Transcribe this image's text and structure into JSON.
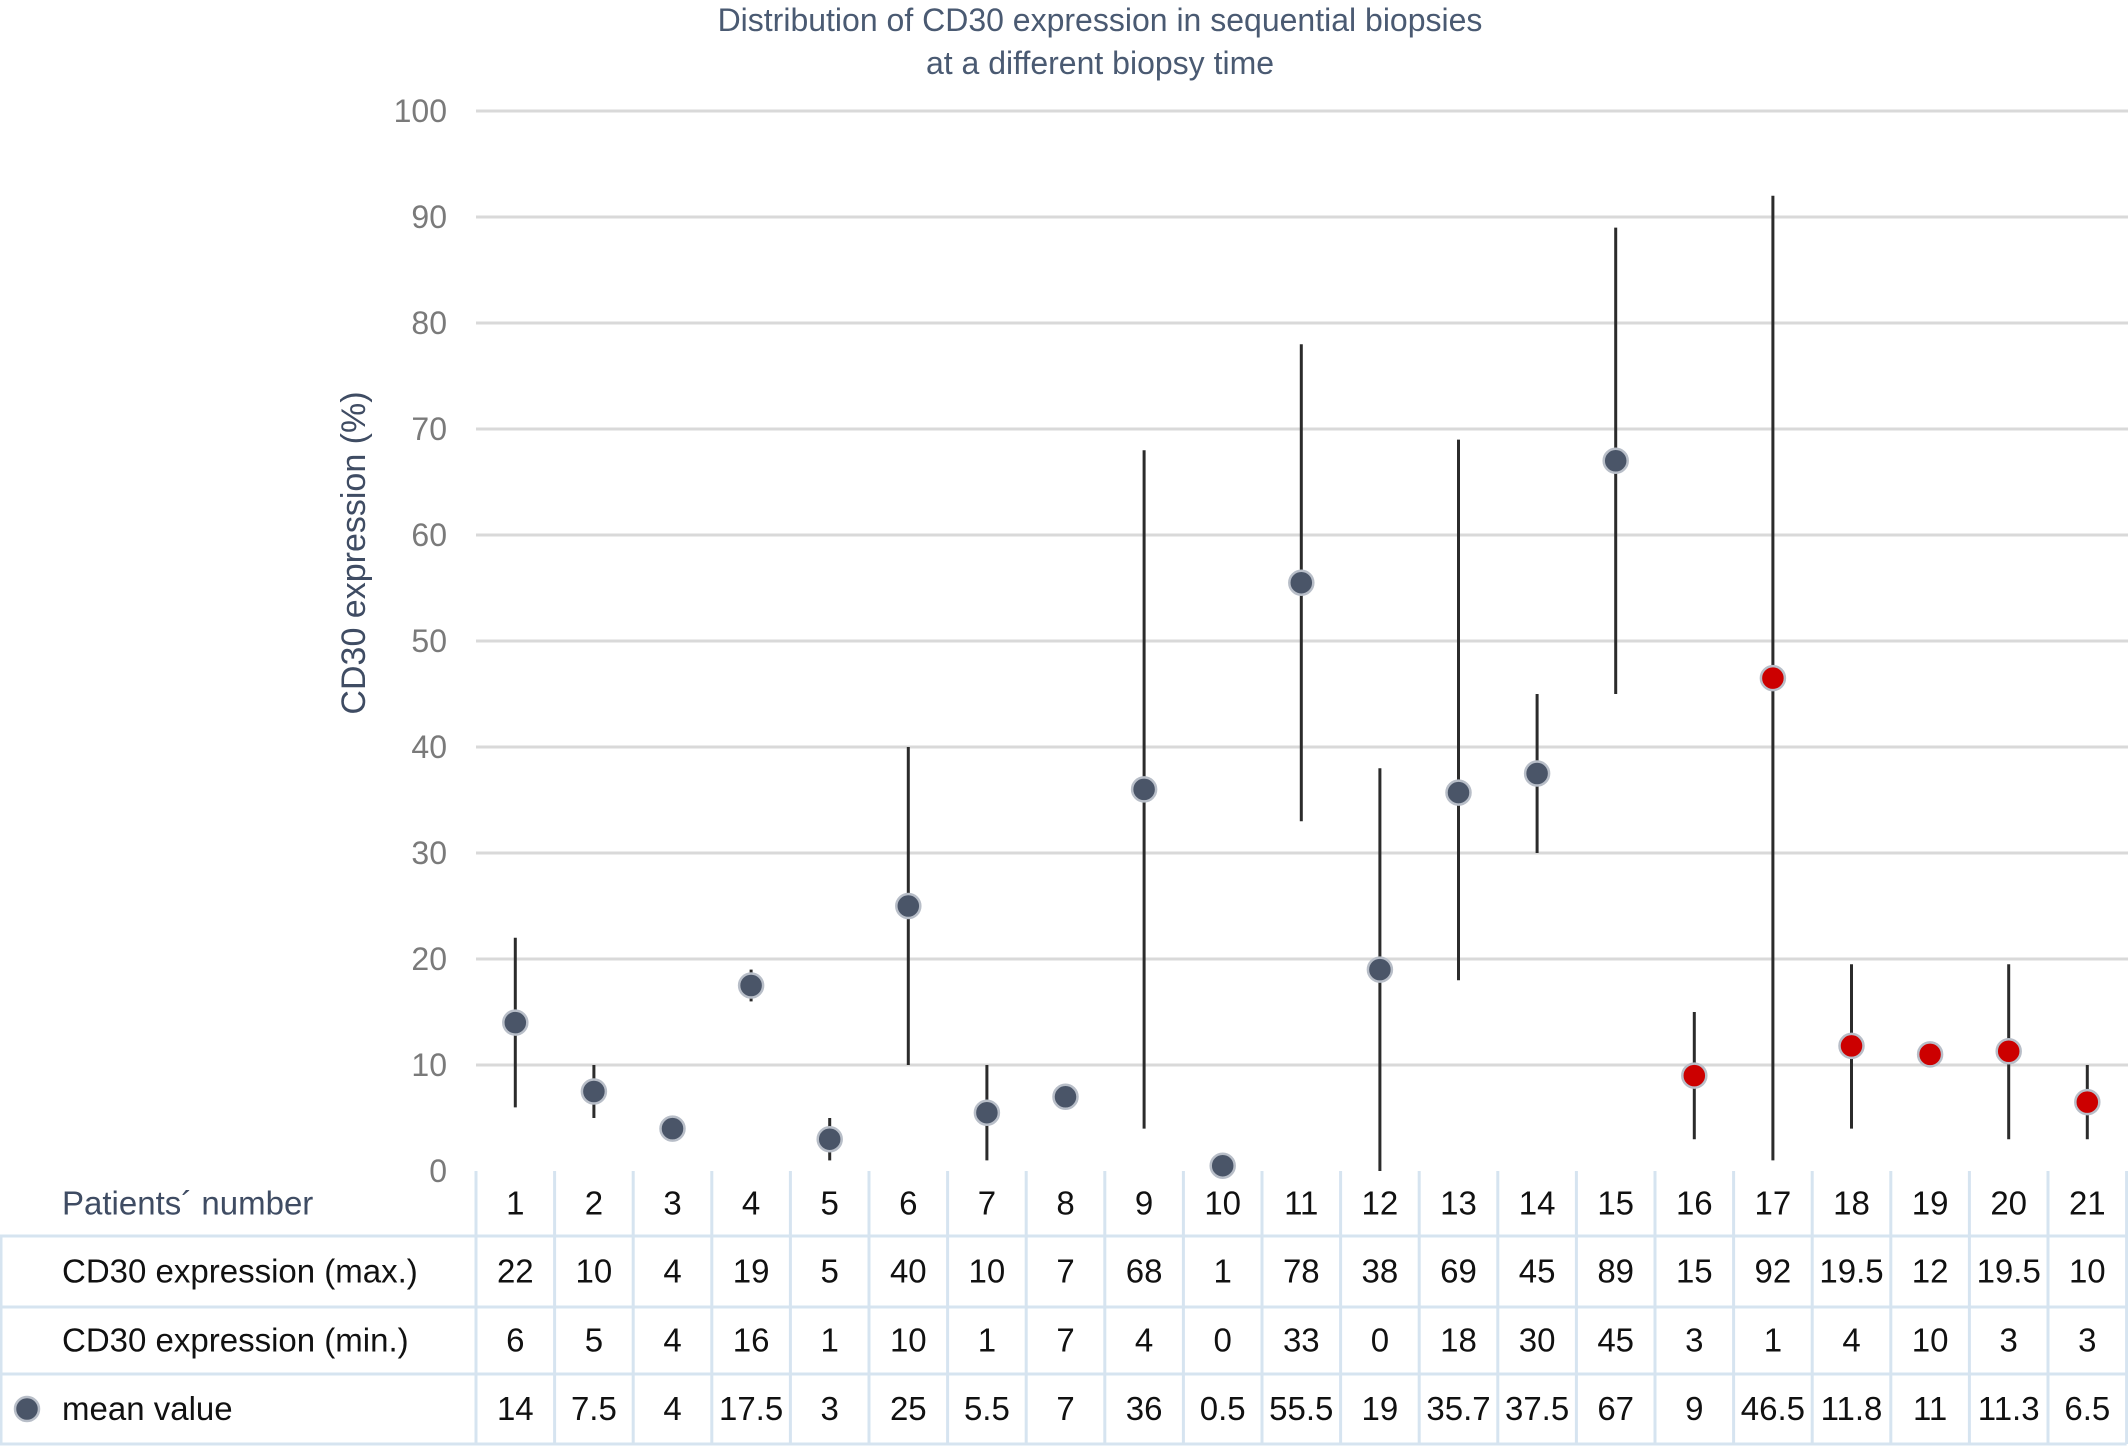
{
  "chart_data": {
    "type": "scatter",
    "title": "Distribution of CD30 expression in sequential biopsies",
    "subtitle": "at a different biopsy time",
    "ylabel": "CD30 expression (%)",
    "ylim": [
      0,
      100
    ],
    "yticks": [
      0,
      10,
      20,
      30,
      40,
      50,
      60,
      70,
      80,
      90,
      100
    ],
    "grid": true,
    "categories": [
      "1",
      "2",
      "3",
      "4",
      "5",
      "6",
      "7",
      "8",
      "9",
      "10",
      "11",
      "12",
      "13",
      "14",
      "15",
      "16",
      "17",
      "18",
      "19",
      "20",
      "21"
    ],
    "max": [
      22,
      10,
      4,
      19,
      5,
      40,
      10,
      7,
      68,
      1,
      78,
      38,
      69,
      45,
      89,
      15,
      92,
      19.5,
      12,
      19.5,
      10
    ],
    "min": [
      6,
      5,
      4,
      16,
      1,
      10,
      1,
      7,
      4,
      0,
      33,
      0,
      18,
      30,
      45,
      3,
      1,
      4,
      10,
      3,
      3
    ],
    "mean": [
      14,
      7.5,
      4,
      17.5,
      3,
      25,
      5.5,
      7,
      36,
      0.5,
      55.5,
      19,
      35.7,
      37.5,
      67,
      9,
      46.5,
      11.8,
      11,
      11.3,
      6.5
    ],
    "mean_display": [
      "14",
      "7.5",
      "4",
      "17.5",
      "3",
      "25",
      "5.5",
      "7",
      "36",
      "0.5",
      "55.5",
      "19",
      "35.7",
      "37.5",
      "67",
      "9",
      "46.5",
      "11.8",
      "11",
      "11.3",
      "6.5"
    ],
    "point_colors": [
      "#4a5568",
      "#4a5568",
      "#4a5568",
      "#4a5568",
      "#4a5568",
      "#4a5568",
      "#4a5568",
      "#4a5568",
      "#4a5568",
      "#4a5568",
      "#4a5568",
      "#4a5568",
      "#4a5568",
      "#4a5568",
      "#4a5568",
      "#cc0000",
      "#cc0000",
      "#cc0000",
      "#cc0000",
      "#cc0000",
      "#cc0000"
    ],
    "table": {
      "header_label": "Patients´ number",
      "row_max_label": "CD30 expression (max.)",
      "row_min_label": "CD30 expression (min.)",
      "row_mean_label": "mean value"
    },
    "legend_marker_color": "#4a5568"
  }
}
